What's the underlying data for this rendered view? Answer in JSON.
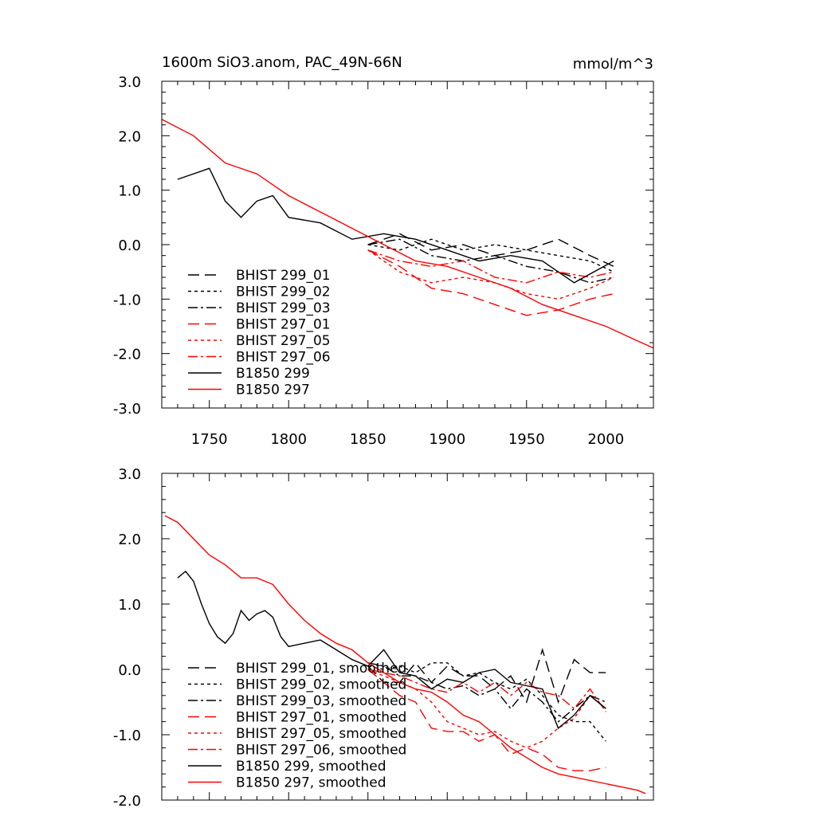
{
  "chart_data": [
    {
      "type": "line",
      "title": "1600m SiO3.anom, PAC_49N-66N",
      "units": "mmol/m^3",
      "xlabel": "",
      "ylabel": "",
      "xlim": [
        1720,
        2030
      ],
      "ylim": [
        -3.0,
        3.0
      ],
      "xticks": [
        1750,
        1800,
        1850,
        1900,
        1950,
        2000
      ],
      "yticks": [
        "3.0",
        "2.0",
        "1.0",
        "0.0",
        "-1.0",
        "-2.0",
        "-3.0"
      ],
      "legend_position": "lower-left",
      "series": [
        {
          "name": "BHIST 299_01",
          "color": "#000000",
          "dash": "long",
          "x_range": [
            1850,
            2005
          ],
          "x": [
            1850,
            1870,
            1890,
            1910,
            1930,
            1950,
            1970,
            1990,
            2005
          ],
          "values": [
            0.0,
            0.2,
            -0.1,
            0.0,
            -0.2,
            -0.1,
            0.1,
            -0.2,
            -0.4
          ]
        },
        {
          "name": "BHIST 299_02",
          "color": "#000000",
          "dash": "short",
          "x_range": [
            1850,
            2005
          ],
          "x": [
            1850,
            1870,
            1890,
            1910,
            1930,
            1950,
            1970,
            1990,
            2005
          ],
          "values": [
            0.0,
            -0.1,
            0.1,
            -0.1,
            0.0,
            -0.1,
            -0.2,
            -0.3,
            -0.5
          ]
        },
        {
          "name": "BHIST 299_03",
          "color": "#000000",
          "dash": "dashdot",
          "x_range": [
            1850,
            2005
          ],
          "x": [
            1850,
            1870,
            1890,
            1910,
            1930,
            1950,
            1970,
            1990,
            2005
          ],
          "values": [
            0.0,
            0.1,
            -0.2,
            -0.3,
            -0.2,
            -0.4,
            -0.5,
            -0.7,
            -0.6
          ]
        },
        {
          "name": "BHIST 297_01",
          "color": "#ff0000",
          "dash": "long",
          "x_range": [
            1850,
            2005
          ],
          "x": [
            1850,
            1870,
            1890,
            1910,
            1930,
            1950,
            1970,
            1990,
            2005
          ],
          "values": [
            -0.1,
            -0.4,
            -0.8,
            -0.9,
            -1.1,
            -1.3,
            -1.2,
            -1.0,
            -0.9
          ]
        },
        {
          "name": "BHIST 297_05",
          "color": "#ff0000",
          "dash": "short",
          "x_range": [
            1850,
            2005
          ],
          "x": [
            1850,
            1870,
            1890,
            1910,
            1930,
            1950,
            1970,
            1990,
            2005
          ],
          "values": [
            -0.1,
            -0.5,
            -0.7,
            -0.6,
            -0.7,
            -0.9,
            -1.0,
            -0.8,
            -0.6
          ]
        },
        {
          "name": "BHIST 297_06",
          "color": "#ff0000",
          "dash": "dashdot",
          "x_range": [
            1850,
            2005
          ],
          "x": [
            1850,
            1870,
            1890,
            1910,
            1930,
            1950,
            1970,
            1990,
            2005
          ],
          "values": [
            -0.1,
            -0.3,
            -0.4,
            -0.3,
            -0.6,
            -0.7,
            -0.5,
            -0.6,
            -0.5
          ]
        },
        {
          "name": "B1850 299",
          "color": "#000000",
          "dash": "solid",
          "x_range": [
            1730,
            2005
          ],
          "x": [
            1730,
            1750,
            1760,
            1770,
            1780,
            1790,
            1800,
            1820,
            1840,
            1860,
            1880,
            1900,
            1920,
            1940,
            1960,
            1980,
            2005
          ],
          "values": [
            1.2,
            1.4,
            0.8,
            0.5,
            0.8,
            0.9,
            0.5,
            0.4,
            0.1,
            0.2,
            0.1,
            -0.1,
            -0.3,
            -0.2,
            -0.3,
            -0.7,
            -0.3
          ]
        },
        {
          "name": "B1850 297",
          "color": "#ff0000",
          "dash": "solid",
          "x_range": [
            1720,
            2030
          ],
          "x": [
            1720,
            1740,
            1760,
            1780,
            1800,
            1820,
            1840,
            1860,
            1880,
            1900,
            1920,
            1940,
            1960,
            1980,
            2000,
            2015,
            2030
          ],
          "values": [
            2.3,
            2.0,
            1.5,
            1.3,
            0.9,
            0.6,
            0.3,
            0.0,
            -0.3,
            -0.4,
            -0.6,
            -0.8,
            -1.1,
            -1.3,
            -1.5,
            -1.7,
            -1.9
          ]
        }
      ]
    },
    {
      "type": "line",
      "title": "",
      "xlabel": "",
      "ylabel": "",
      "xlim": [
        1720,
        2030
      ],
      "ylim": [
        -2.0,
        3.0
      ],
      "yticks": [
        "3.0",
        "2.0",
        "1.0",
        "0.0",
        "-1.0",
        "-2.0"
      ],
      "legend_position": "lower-left",
      "series": [
        {
          "name": "BHIST 299_01, smoothed",
          "color": "#000000",
          "dash": "long",
          "x": [
            1850,
            1860,
            1870,
            1880,
            1890,
            1900,
            1910,
            1920,
            1930,
            1940,
            1950,
            1960,
            1970,
            1980,
            1990,
            2000
          ],
          "values": [
            0.05,
            -0.2,
            -0.2,
            0.1,
            -0.2,
            0.05,
            -0.1,
            -0.1,
            -0.3,
            -0.1,
            -0.5,
            0.3,
            -0.5,
            0.15,
            -0.05,
            -0.05
          ]
        },
        {
          "name": "BHIST 299_02, smoothed",
          "color": "#000000",
          "dash": "short",
          "x": [
            1850,
            1860,
            1870,
            1880,
            1890,
            1900,
            1910,
            1920,
            1930,
            1940,
            1950,
            1960,
            1970,
            1980,
            1990,
            2000
          ],
          "values": [
            0.05,
            0.0,
            0.05,
            -0.05,
            0.1,
            0.1,
            -0.1,
            -0.05,
            -0.2,
            -0.3,
            -0.15,
            -0.4,
            -0.7,
            -0.8,
            -0.8,
            -1.1
          ]
        },
        {
          "name": "BHIST 299_03, smoothed",
          "color": "#000000",
          "dash": "dashdot",
          "x": [
            1850,
            1860,
            1870,
            1880,
            1890,
            1900,
            1910,
            1920,
            1930,
            1940,
            1950,
            1960,
            1970,
            1980,
            1990,
            2000
          ],
          "values": [
            0.1,
            0.05,
            -0.1,
            -0.1,
            -0.2,
            -0.3,
            -0.25,
            -0.4,
            -0.3,
            -0.6,
            -0.3,
            -0.5,
            -0.8,
            -0.6,
            -0.4,
            -0.5
          ]
        },
        {
          "name": "BHIST 297_01, smoothed",
          "color": "#ff0000",
          "dash": "long",
          "x": [
            1850,
            1860,
            1870,
            1880,
            1890,
            1900,
            1910,
            1920,
            1930,
            1940,
            1950,
            1960,
            1970,
            1980,
            1990,
            2000
          ],
          "values": [
            0.0,
            -0.2,
            -0.4,
            -0.5,
            -0.9,
            -0.95,
            -0.95,
            -1.1,
            -1.0,
            -1.3,
            -1.2,
            -1.3,
            -1.5,
            -1.55,
            -1.55,
            -1.5
          ]
        },
        {
          "name": "BHIST 297_05, smoothed",
          "color": "#ff0000",
          "dash": "short",
          "x": [
            1850,
            1860,
            1870,
            1880,
            1890,
            1900,
            1910,
            1920,
            1930,
            1940,
            1950,
            1960,
            1970,
            1980,
            1990,
            2000
          ],
          "values": [
            0.0,
            -0.1,
            -0.2,
            -0.3,
            -0.5,
            -0.8,
            -0.9,
            -1.0,
            -0.95,
            -1.1,
            -1.2,
            -1.1,
            -0.9,
            -0.75,
            -0.4,
            -0.6
          ]
        },
        {
          "name": "BHIST 297_06, smoothed",
          "color": "#ff0000",
          "dash": "dashdot",
          "x": [
            1850,
            1860,
            1870,
            1880,
            1890,
            1900,
            1910,
            1920,
            1930,
            1940,
            1950,
            1960,
            1970,
            1980,
            1990,
            2000
          ],
          "values": [
            0.0,
            -0.05,
            -0.1,
            -0.2,
            -0.3,
            -0.35,
            -0.2,
            -0.35,
            -0.2,
            -0.4,
            -0.2,
            -0.35,
            -0.4,
            -0.6,
            -0.3,
            -0.65
          ]
        },
        {
          "name": "B1850 299, smoothed",
          "color": "#000000",
          "dash": "solid",
          "x": [
            1730,
            1735,
            1740,
            1745,
            1750,
            1755,
            1760,
            1765,
            1770,
            1775,
            1780,
            1785,
            1790,
            1795,
            1800,
            1810,
            1820,
            1830,
            1840,
            1850,
            1860,
            1870,
            1880,
            1890,
            1900,
            1910,
            1920,
            1930,
            1940,
            1950,
            1960,
            1970,
            1980,
            1990,
            2000
          ],
          "values": [
            1.4,
            1.5,
            1.35,
            1.0,
            0.7,
            0.5,
            0.4,
            0.55,
            0.9,
            0.75,
            0.85,
            0.9,
            0.8,
            0.5,
            0.35,
            0.4,
            0.45,
            0.3,
            0.15,
            0.05,
            0.3,
            -0.05,
            -0.1,
            -0.3,
            -0.15,
            -0.2,
            -0.05,
            0.0,
            -0.2,
            -0.25,
            -0.3,
            -0.9,
            -0.7,
            -0.4,
            -0.6
          ]
        },
        {
          "name": "B1850 297, smoothed",
          "color": "#ff0000",
          "dash": "solid",
          "x": [
            1722,
            1730,
            1740,
            1750,
            1760,
            1770,
            1780,
            1790,
            1800,
            1810,
            1820,
            1830,
            1840,
            1850,
            1860,
            1870,
            1880,
            1890,
            1900,
            1910,
            1920,
            1930,
            1940,
            1950,
            1960,
            1970,
            1980,
            1990,
            2000,
            2010,
            2020,
            2025
          ],
          "values": [
            2.35,
            2.25,
            2.0,
            1.75,
            1.6,
            1.4,
            1.4,
            1.3,
            1.0,
            0.75,
            0.55,
            0.4,
            0.3,
            0.1,
            -0.05,
            -0.2,
            -0.3,
            -0.35,
            -0.5,
            -0.7,
            -0.8,
            -1.0,
            -1.2,
            -1.35,
            -1.5,
            -1.6,
            -1.65,
            -1.7,
            -1.75,
            -1.8,
            -1.85,
            -1.9
          ]
        }
      ]
    }
  ]
}
